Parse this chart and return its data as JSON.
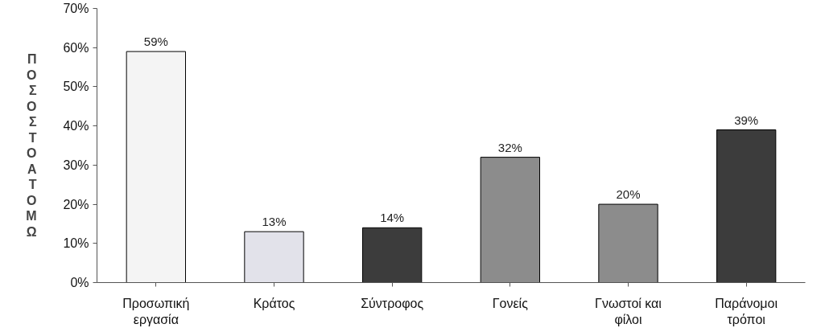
{
  "chart_data": {
    "type": "bar",
    "ylabel": "ΠΟΣΟΣΤΟ ΑΤΟΜΩ",
    "categories": [
      "Προσωπική εργασία",
      "Κράτος",
      "Σύντροφος",
      "Γονείς",
      "Γνωστοί και φίλοι",
      "Παράνομοι τρόποι"
    ],
    "values": [
      59,
      13,
      14,
      32,
      20,
      39
    ],
    "value_labels": [
      "59%",
      "13%",
      "14%",
      "32%",
      "20%",
      "39%"
    ],
    "colors": [
      "#f4f4f4",
      "#e2e2ea",
      "#3c3c3c",
      "#8c8c8c",
      "#8c8c8c",
      "#3c3c3c"
    ],
    "ylim": [
      0,
      70
    ],
    "yticks": [
      {
        "value": 0,
        "label": "0%"
      },
      {
        "value": 10,
        "label": "10%"
      },
      {
        "value": 20,
        "label": "20%"
      },
      {
        "value": 30,
        "label": "30%"
      },
      {
        "value": 40,
        "label": "40%"
      },
      {
        "value": 50,
        "label": "50%"
      },
      {
        "value": 60,
        "label": "60%"
      },
      {
        "value": 70,
        "label": "70%"
      }
    ],
    "grid": false
  }
}
